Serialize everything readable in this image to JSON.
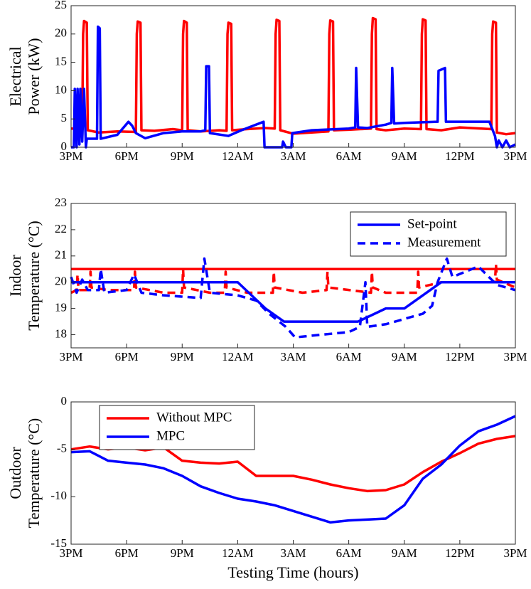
{
  "chart_data": [
    {
      "type": "line",
      "ylabel": [
        "Electrical",
        "Power (kW)"
      ],
      "xlim": [
        0,
        24
      ],
      "ylim": [
        0,
        25
      ],
      "yticks": [
        0,
        5,
        10,
        15,
        20,
        25
      ],
      "xticks": [
        {
          "value": 0,
          "label": "3PM"
        },
        {
          "value": 3,
          "label": "6PM"
        },
        {
          "value": 6,
          "label": "9PM"
        },
        {
          "value": 9,
          "label": "12AM"
        },
        {
          "value": 12,
          "label": "3AM"
        },
        {
          "value": 15,
          "label": "6AM"
        },
        {
          "value": 18,
          "label": "9AM"
        },
        {
          "value": 21,
          "label": "12PM"
        },
        {
          "value": 24,
          "label": "3PM"
        }
      ],
      "series": [
        {
          "color": "#ff0000",
          "x": [
            0,
            0.6,
            0.65,
            0.7,
            0.85,
            0.9,
            1.5,
            2.5,
            3.5,
            3.55,
            3.6,
            3.75,
            3.8,
            4.5,
            5.5,
            6.0,
            6.05,
            6.1,
            6.25,
            6.3,
            7,
            8,
            8.4,
            8.45,
            8.5,
            8.65,
            8.7,
            9.5,
            10.5,
            11.0,
            11.05,
            11.1,
            11.25,
            11.3,
            12,
            13,
            13.9,
            13.95,
            14.0,
            14.15,
            14.2,
            15,
            16.2,
            16.25,
            16.3,
            16.45,
            16.5,
            17,
            18,
            18.9,
            18.95,
            19.0,
            19.15,
            19.2,
            20,
            21,
            22.7,
            22.75,
            22.8,
            22.95,
            23.0,
            23.5,
            24
          ],
          "values": [
            3.3,
            3.2,
            20,
            22.3,
            22,
            3,
            2.6,
            2.8,
            2.7,
            20,
            22.2,
            22,
            3,
            2.9,
            3.2,
            3.0,
            20,
            22.3,
            22,
            3,
            2.8,
            3.0,
            2.9,
            20,
            22,
            21.8,
            3,
            3.2,
            3.4,
            3.3,
            20,
            22.5,
            22.3,
            3,
            2.4,
            2.6,
            2.8,
            20,
            22.4,
            22.2,
            3,
            3.1,
            3.3,
            20,
            22.8,
            22.6,
            3.2,
            3.0,
            3.3,
            3.2,
            20,
            22.6,
            22.4,
            3.2,
            3.0,
            3.5,
            3.2,
            20,
            22.2,
            22,
            2.6,
            2.3,
            2.5
          ]
        },
        {
          "color": "#0000ff",
          "x": [
            0,
            0.15,
            0.2,
            0.3,
            0.35,
            0.45,
            0.5,
            0.6,
            0.7,
            0.8,
            0.85,
            1.4,
            1.45,
            1.55,
            1.6,
            2.5,
            3.1,
            3.3,
            3.5,
            4.0,
            5.0,
            6.0,
            7.0,
            7.25,
            7.3,
            7.45,
            7.5,
            8.5,
            9.2,
            10.0,
            10.4,
            10.45,
            11.4,
            11.45,
            11.6,
            11.9,
            11.95,
            13,
            15.0,
            15.35,
            15.4,
            15.5,
            16.0,
            17.0,
            17.3,
            17.35,
            17.45,
            18,
            19.8,
            19.85,
            20.2,
            20.25,
            22.6,
            22.9,
            23.0,
            23.1,
            23.3,
            23.5,
            23.7,
            24
          ],
          "values": [
            0,
            0,
            10.3,
            0,
            10.3,
            0.5,
            10.3,
            1,
            10.3,
            0,
            1.5,
            1.5,
            21.3,
            21,
            1.5,
            2.2,
            4.5,
            3.8,
            2.5,
            1.6,
            2.5,
            2.8,
            2.8,
            3,
            14.3,
            14.3,
            2.5,
            2.0,
            3.0,
            4.0,
            4.5,
            0,
            0,
            1,
            0,
            0,
            2.5,
            3.0,
            3.3,
            3.5,
            14,
            3.5,
            3.4,
            4.0,
            4.3,
            14,
            4.2,
            4.3,
            4.5,
            13.5,
            14,
            4.5,
            4.5,
            2,
            0,
            1.2,
            0,
            1.2,
            0,
            0.5
          ]
        }
      ]
    },
    {
      "type": "line",
      "ylabel": [
        "Indoor",
        "Temperature (°C)"
      ],
      "xlim": [
        0,
        24
      ],
      "ylim": [
        17.5,
        23
      ],
      "yticks": [
        18,
        19,
        20,
        21,
        22,
        23
      ],
      "xticks": [
        {
          "value": 0,
          "label": "3PM"
        },
        {
          "value": 3,
          "label": "6PM"
        },
        {
          "value": 6,
          "label": "9PM"
        },
        {
          "value": 9,
          "label": "12AM"
        },
        {
          "value": 12,
          "label": "3AM"
        },
        {
          "value": 15,
          "label": "6AM"
        },
        {
          "value": 18,
          "label": "9AM"
        },
        {
          "value": 21,
          "label": "12PM"
        },
        {
          "value": 24,
          "label": "3PM"
        }
      ],
      "legend": "upper right",
      "series": [
        {
          "color": "#ff0000",
          "x": [
            0,
            24
          ],
          "values": [
            20.5,
            20.5
          ]
        },
        {
          "color": "#ff0000",
          "dashed": true,
          "x": [
            0,
            0.3,
            0.35,
            0.4,
            1,
            1.05,
            1.1,
            2,
            3.4,
            3.45,
            3.5,
            5,
            6.0,
            6.05,
            6.1,
            7.5,
            8.3,
            8.35,
            8.4,
            9.5,
            10.9,
            10.95,
            11,
            12.5,
            13.8,
            13.85,
            13.9,
            16.2,
            16.25,
            16.3,
            17,
            18.7,
            18.75,
            18.8,
            20,
            22,
            22.9,
            22.95,
            23,
            24
          ],
          "values": [
            19.6,
            19.7,
            20.3,
            19.7,
            19.7,
            20.4,
            19.8,
            19.7,
            19.7,
            20.4,
            19.8,
            19.6,
            19.6,
            20.5,
            19.8,
            19.6,
            19.6,
            20.4,
            19.8,
            19.6,
            19.6,
            20.4,
            19.8,
            19.6,
            19.7,
            20.4,
            19.8,
            19.6,
            20.4,
            19.8,
            19.6,
            19.6,
            20.4,
            19.8,
            20,
            20,
            20,
            20.7,
            20.1,
            19.8
          ]
        },
        {
          "name": "Set-point",
          "color": "#0000ff",
          "x": [
            0,
            9,
            10.5,
            11.5,
            15.5,
            17,
            18,
            20,
            24
          ],
          "values": [
            20,
            20,
            19,
            18.5,
            18.5,
            19,
            19,
            20,
            20
          ]
        },
        {
          "name": "Measurement",
          "color": "#0000ff",
          "dashed": true,
          "x": [
            0,
            0.3,
            0.6,
            0.9,
            1.5,
            1.6,
            1.8,
            3,
            3.4,
            3.8,
            5,
            7,
            7.2,
            7.5,
            9,
            10,
            10.7,
            11.6,
            12.1,
            13.5,
            15,
            15.6,
            15.9,
            16,
            17,
            18,
            19,
            19.5,
            19.8,
            20.3,
            20.6,
            22,
            23,
            24
          ],
          "values": [
            20.2,
            19.6,
            20.1,
            19.7,
            19.7,
            20.5,
            19.6,
            19.7,
            20.3,
            19.6,
            19.5,
            19.4,
            20.9,
            19.6,
            19.5,
            19.3,
            18.8,
            18.3,
            17.9,
            18,
            18.1,
            18.3,
            20,
            18.3,
            18.4,
            18.6,
            18.8,
            19.1,
            20,
            20.9,
            20.2,
            20.6,
            19.9,
            19.7
          ]
        }
      ]
    },
    {
      "type": "line",
      "ylabel": [
        "Outdoor",
        "Temperature (°C)"
      ],
      "xlabel": "Testing Time (hours)",
      "xlim": [
        0,
        24
      ],
      "ylim": [
        -15,
        0
      ],
      "yticks": [
        -15,
        -10,
        -5,
        0
      ],
      "xticks": [
        {
          "value": 0,
          "label": "3PM"
        },
        {
          "value": 3,
          "label": "6PM"
        },
        {
          "value": 6,
          "label": "9PM"
        },
        {
          "value": 9,
          "label": "12AM"
        },
        {
          "value": 12,
          "label": "3AM"
        },
        {
          "value": 15,
          "label": "6AM"
        },
        {
          "value": 18,
          "label": "9AM"
        },
        {
          "value": 21,
          "label": "12PM"
        },
        {
          "value": 24,
          "label": "3PM"
        }
      ],
      "legend": "upper left",
      "series": [
        {
          "name": "Without MPC",
          "color": "#ff0000",
          "x": [
            0,
            1,
            2,
            3,
            4,
            5,
            6,
            7,
            8,
            9,
            10,
            11,
            12,
            13,
            14,
            15,
            16,
            17,
            18,
            19,
            20,
            21,
            22,
            23,
            24
          ],
          "values": [
            -5,
            -4.7,
            -5,
            -4.8,
            -5.1,
            -4.8,
            -6.2,
            -6.4,
            -6.5,
            -6.3,
            -7.8,
            -7.8,
            -7.8,
            -8.2,
            -8.7,
            -9.1,
            -9.4,
            -9.3,
            -8.7,
            -7.4,
            -6.3,
            -5.4,
            -4.4,
            -3.9,
            -3.6
          ]
        },
        {
          "name": "MPC",
          "color": "#0000ff",
          "x": [
            0,
            1,
            2,
            3,
            4,
            5,
            6,
            7,
            8,
            9,
            10,
            11,
            12,
            13,
            14,
            15,
            16,
            17,
            18,
            19,
            20,
            21,
            22,
            23,
            24
          ],
          "values": [
            -5.3,
            -5.2,
            -6.2,
            -6.4,
            -6.6,
            -7.0,
            -7.8,
            -8.9,
            -9.6,
            -10.2,
            -10.5,
            -10.9,
            -11.5,
            -12.1,
            -12.7,
            -12.5,
            -12.4,
            -12.3,
            -10.9,
            -8.1,
            -6.6,
            -4.6,
            -3.1,
            -2.4,
            -1.5
          ]
        }
      ]
    }
  ]
}
